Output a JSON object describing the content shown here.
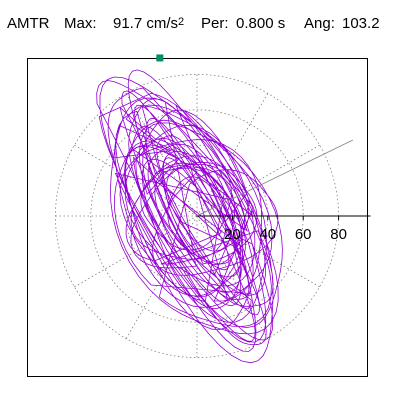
{
  "header": {
    "component": "AMTR",
    "max_label": "Max:",
    "max_value": "91.7",
    "max_unit": "cm/s",
    "max_unit_power": "2",
    "period_label": "Per:",
    "period_value": "0.800 s",
    "angle_label": "Ang:",
    "angle_value": "103.2"
  },
  "colors": {
    "trace": "#9400d3",
    "marker": "#008f6b",
    "grid": "#808080",
    "axis": "#000000",
    "frame": "#000000"
  },
  "chart_data": {
    "type": "line",
    "title": "",
    "xlabel": "",
    "ylabel": "",
    "rings": [
      20,
      40,
      60,
      80
    ],
    "ring_labels": [
      "20",
      "40",
      "60",
      "80"
    ],
    "max_radius": 91.7,
    "angle_deg": 103.2,
    "axis_line_angle_deg": 26,
    "grid": true,
    "polar_grid_angles_deg": [
      0,
      30,
      60,
      90,
      120,
      150,
      180,
      210,
      240,
      270,
      300,
      330
    ],
    "marker_point": {
      "x": -21,
      "y": 89.3
    },
    "series": [
      {
        "envelope_semi_axes": [
          88,
          38
        ],
        "envelope_tilt_deg": -62,
        "loop_count": 34,
        "samples": 1700
      }
    ]
  }
}
